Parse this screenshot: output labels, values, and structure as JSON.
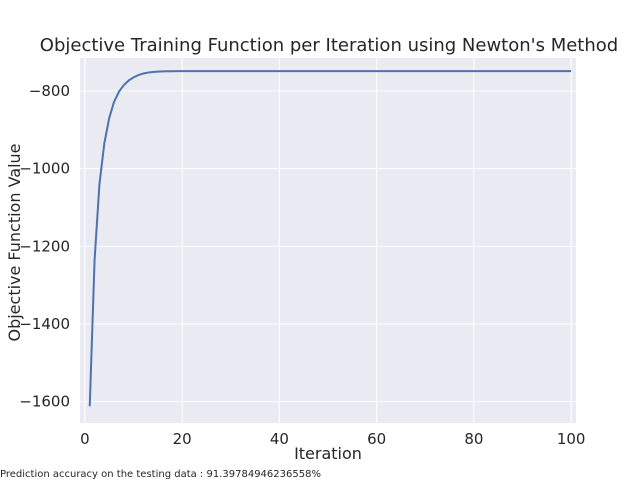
{
  "chart_data": {
    "type": "line",
    "title": "Objective Training Function per Iteration using Newton's Method",
    "xlabel": "Iteration",
    "ylabel": "Objective Function Value",
    "xlim": [
      -1,
      101
    ],
    "ylim": [
      -1655,
      -715
    ],
    "xticks": [
      0,
      20,
      40,
      60,
      80,
      100
    ],
    "yticks": [
      -800,
      -1000,
      -1200,
      -1400,
      -1600
    ],
    "xtick_labels": [
      "0",
      "20",
      "40",
      "60",
      "80",
      "100"
    ],
    "ytick_labels": [
      "−800",
      "−1000",
      "−1200",
      "−1400",
      "−1600"
    ],
    "grid": true,
    "series": [
      {
        "color": "#4c72b0",
        "x": [
          1,
          2,
          3,
          4,
          5,
          6,
          7,
          8,
          9,
          10,
          11,
          12,
          13,
          14,
          15,
          16,
          17,
          18,
          19,
          20,
          25,
          30,
          40,
          50,
          60,
          70,
          80,
          90,
          100
        ],
        "values": [
          -1612,
          -1235,
          -1040,
          -935,
          -870,
          -828,
          -802,
          -785,
          -773,
          -765,
          -759,
          -755,
          -752.5,
          -751,
          -750,
          -749.5,
          -749.2,
          -749,
          -748.9,
          -748.8,
          -748.7,
          -748.7,
          -748.7,
          -748.7,
          -748.7,
          -748.7,
          -748.7,
          -748.7,
          -748.7
        ]
      }
    ]
  },
  "footer": {
    "text": "Prediction accuracy on the testing data : 91.39784946236558%"
  },
  "colors": {
    "plot_background": "#eaeaf2",
    "grid": "#ffffff",
    "line": "#4c72b0"
  }
}
